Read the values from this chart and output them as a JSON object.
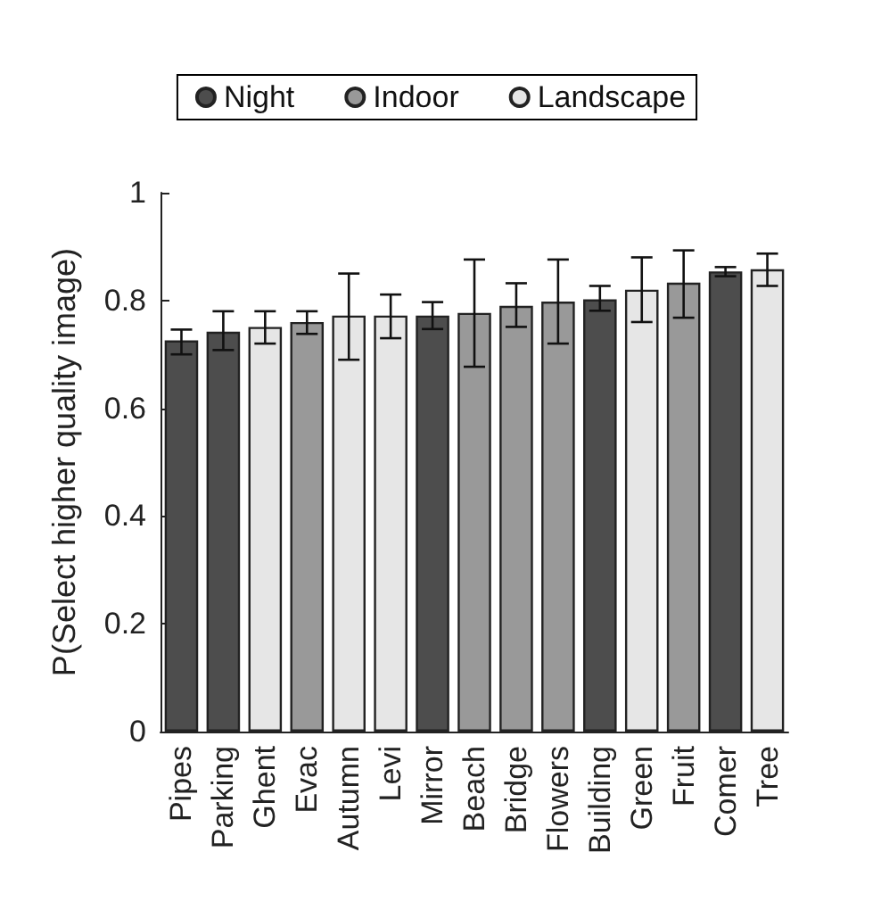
{
  "chart_data": {
    "type": "bar",
    "ylabel": "P(Select higher quality image)",
    "categories": [
      "Pipes",
      "Parking",
      "Ghent",
      "Evac",
      "Autumn",
      "Levi",
      "Mirror",
      "Beach",
      "Bridge",
      "Flowers",
      "Building",
      "Green",
      "Fruit",
      "Comer",
      "Tree"
    ],
    "series": [
      {
        "name": "Night",
        "color": "#4d4d4d",
        "values": [
          0.726,
          0.742,
          null,
          null,
          null,
          null,
          0.772,
          null,
          null,
          null,
          0.802,
          null,
          null,
          0.854,
          null
        ],
        "errors": [
          [
            0.7,
            0.746
          ],
          [
            0.708,
            0.78
          ],
          null,
          null,
          null,
          null,
          [
            0.747,
            0.797
          ],
          null,
          null,
          null,
          [
            0.781,
            0.827
          ],
          null,
          null,
          [
            0.845,
            0.862
          ],
          null
        ]
      },
      {
        "name": "Indoor",
        "color": "#999999",
        "values": [
          null,
          null,
          null,
          0.76,
          null,
          null,
          null,
          0.777,
          0.79,
          0.798,
          null,
          null,
          0.833,
          null,
          null
        ],
        "errors": [
          null,
          null,
          null,
          [
            0.738,
            0.78
          ],
          null,
          null,
          null,
          [
            0.677,
            0.876
          ],
          [
            0.751,
            0.832
          ],
          [
            0.72,
            0.876
          ],
          null,
          null,
          [
            0.768,
            0.893
          ],
          null,
          null
        ]
      },
      {
        "name": "Landscape",
        "color": "#e6e6e6",
        "values": [
          null,
          null,
          0.751,
          null,
          0.772,
          0.772,
          null,
          null,
          null,
          null,
          null,
          0.82,
          null,
          null,
          0.858
        ],
        "errors": [
          null,
          null,
          [
            0.72,
            0.78
          ],
          null,
          [
            0.69,
            0.85
          ],
          [
            0.73,
            0.811
          ],
          null,
          null,
          null,
          null,
          null,
          [
            0.76,
            0.88
          ],
          null,
          null,
          [
            0.827,
            0.887
          ]
        ]
      }
    ],
    "ylim": [
      0,
      1
    ],
    "yticks": [
      0,
      0.2,
      0.4,
      0.6,
      0.8,
      1
    ],
    "grid": false,
    "legend": "top"
  }
}
